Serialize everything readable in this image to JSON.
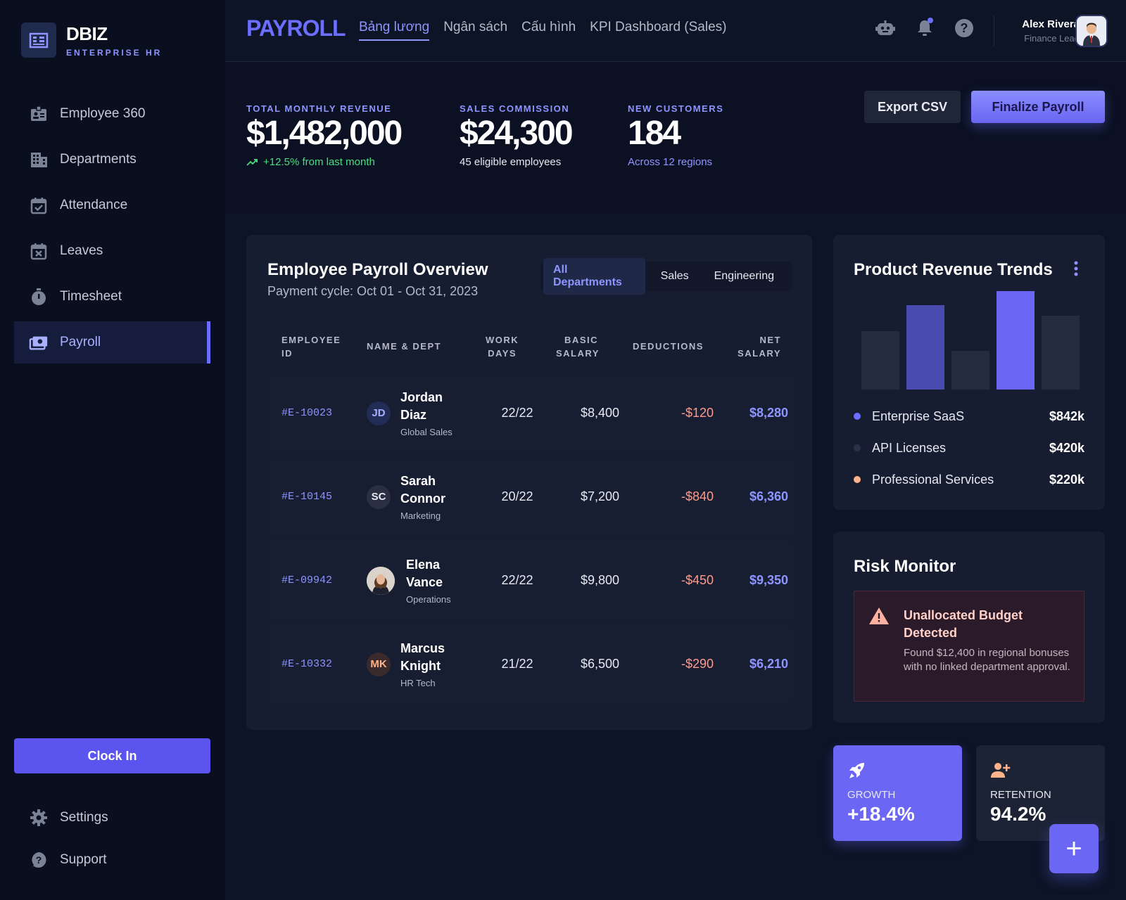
{
  "brand": {
    "name": "DBIZ",
    "subtitle": "ENTERPRISE HR"
  },
  "sidebar": {
    "items": [
      {
        "label": "Employee 360",
        "icon": "badge-icon"
      },
      {
        "label": "Departments",
        "icon": "building-icon"
      },
      {
        "label": "Attendance",
        "icon": "calendar-check-icon"
      },
      {
        "label": "Leaves",
        "icon": "calendar-x-icon"
      },
      {
        "label": "Timesheet",
        "icon": "timer-icon"
      },
      {
        "label": "Payroll",
        "icon": "payments-icon",
        "active": true
      }
    ],
    "clock_in": "Clock In",
    "settings": "Settings",
    "support": "Support"
  },
  "topbar": {
    "app_title": "PAYROLL",
    "tabs": [
      "Bảng lương",
      "Ngân sách",
      "Cấu hình",
      "KPI Dashboard (Sales)"
    ],
    "active_tab": 0,
    "user": {
      "name": "Alex Rivera",
      "role": "Finance Lead"
    }
  },
  "kpis": [
    {
      "label": "TOTAL MONTHLY REVENUE",
      "value": "$1,482,000",
      "sub": "+12.5% from last month",
      "sub_color": "#4ade80"
    },
    {
      "label": "SALES COMMISSION",
      "value": "$24,300",
      "sub": "45 eligible employees",
      "sub_color": "#e6e9f2"
    },
    {
      "label": "NEW CUSTOMERS",
      "value": "184",
      "sub": "Across 12 regions",
      "sub_color": "#8f95ff"
    }
  ],
  "actions": {
    "export": "Export CSV",
    "finalize": "Finalize Payroll"
  },
  "payroll": {
    "title": "Employee Payroll Overview",
    "subtitle": "Payment cycle: Oct 01 - Oct 31, 2023",
    "filters": [
      "All Departments",
      "Sales",
      "Engineering"
    ],
    "headers": {
      "employee_id": [
        "EMPLOYEE",
        "ID"
      ],
      "name_dept": "NAME & DEPT",
      "work_days": [
        "WORK",
        "DAYS"
      ],
      "basic_salary": [
        "BASIC",
        "SALARY"
      ],
      "deductions": "DEDUCTIONS",
      "net_salary": [
        "NET",
        "SALARY"
      ]
    },
    "rows": [
      {
        "id": "#E-10023",
        "initials": "JD",
        "first": "Jordan",
        "last": "Diaz",
        "dept": "Global Sales",
        "days": "22/22",
        "basic": "$8,400",
        "deduction": "-$120",
        "net": "$8,280"
      },
      {
        "id": "#E-10145",
        "initials": "SC",
        "first": "Sarah",
        "last": "Connor",
        "dept": "Marketing",
        "days": "20/22",
        "basic": "$7,200",
        "deduction": "-$840",
        "net": "$6,360"
      },
      {
        "id": "#E-09942",
        "initials": "",
        "first": "Elena",
        "last": "Vance",
        "dept": "Operations",
        "days": "22/22",
        "basic": "$9,800",
        "deduction": "-$450",
        "net": "$9,350"
      },
      {
        "id": "#E-10332",
        "initials": "MK",
        "first": "Marcus",
        "last": "Knight",
        "dept": "HR Tech",
        "days": "21/22",
        "basic": "$6,500",
        "deduction": "-$290",
        "net": "$6,210"
      }
    ]
  },
  "revenue": {
    "title": "Product Revenue Trends",
    "legend": [
      {
        "name": "Enterprise SaaS",
        "value": "$842k",
        "color": "#6b6eff"
      },
      {
        "name": "API Licenses",
        "value": "$420k",
        "color": "#2a3148"
      },
      {
        "name": "Professional Services",
        "value": "$220k",
        "color": "#ffb38a"
      }
    ]
  },
  "chart_data": {
    "type": "bar",
    "categories": [
      "",
      "",
      "",
      "",
      ""
    ],
    "values": [
      0.59,
      0.86,
      0.39,
      1.0,
      0.75
    ],
    "colors": [
      "#242b3e",
      "#4a4bb0",
      "#242b3e",
      "#6b66f4",
      "#242b3e"
    ],
    "title": "",
    "xlabel": "",
    "ylabel": "",
    "ylim": [
      0,
      1
    ]
  },
  "risk": {
    "title": "Risk Monitor",
    "alert_title": "Unallocated Budget Detected",
    "alert_text": "Found $12,400 in regional bonuses with no linked department approval."
  },
  "tiles": {
    "growth": {
      "label": "GROWTH",
      "value": "+18.4%"
    },
    "retention": {
      "label": "RETENTION",
      "value": "94.2%"
    }
  },
  "fab": "+"
}
